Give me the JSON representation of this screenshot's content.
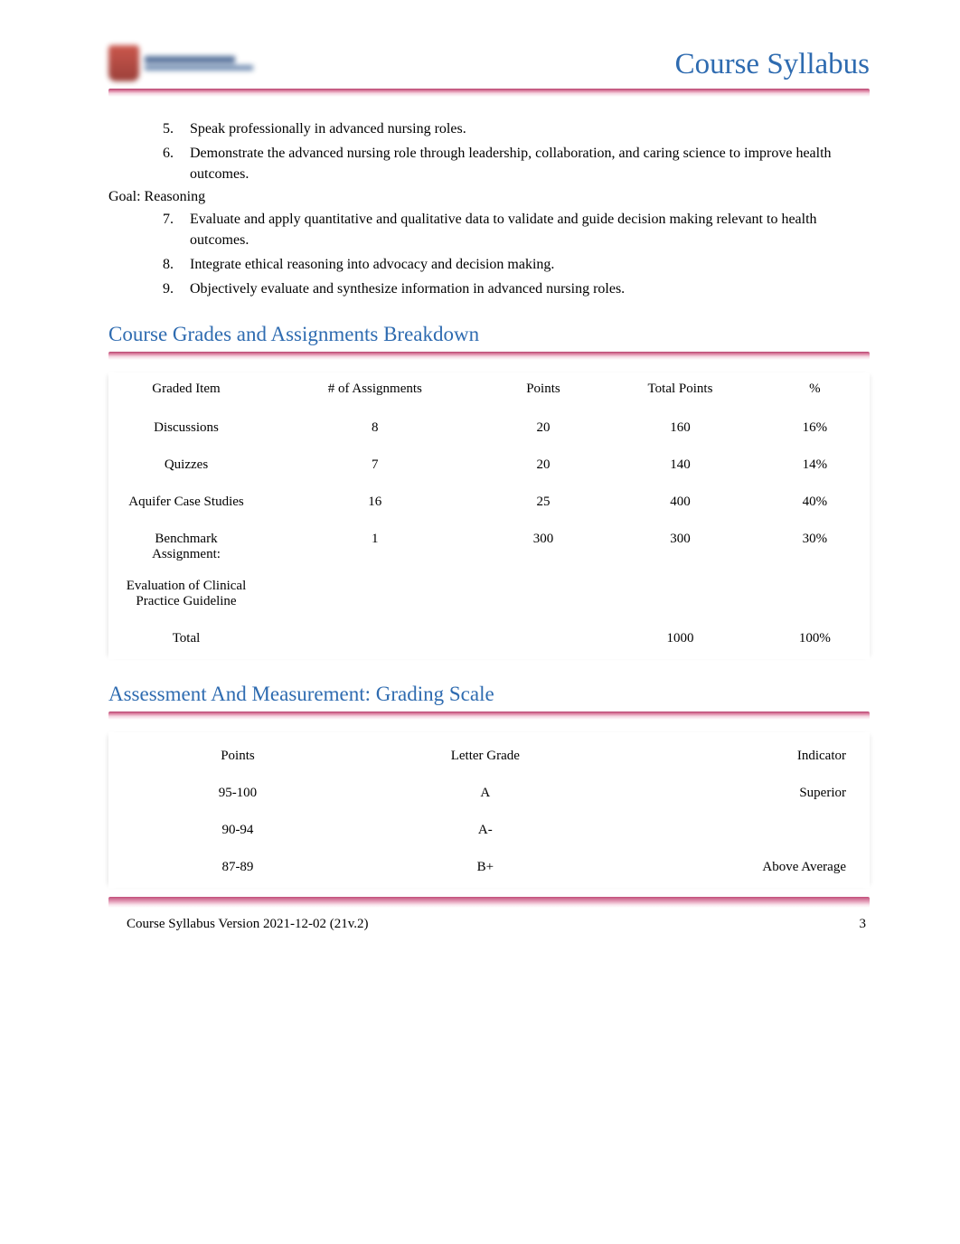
{
  "header": {
    "title": "Course Syllabus"
  },
  "list1": {
    "items": [
      {
        "n": "5.",
        "t": "Speak professionally in advanced nursing roles."
      },
      {
        "n": "6.",
        "t": "Demonstrate the advanced nursing role through leadership, collaboration, and caring science to improve health outcomes."
      }
    ]
  },
  "goal_label": "Goal: Reasoning",
  "list2": {
    "items": [
      {
        "n": "7.",
        "t": "Evaluate and apply quantitative and qualitative data to validate and guide decision making relevant to health outcomes."
      },
      {
        "n": "8.",
        "t": "Integrate ethical reasoning into advocacy and decision making."
      },
      {
        "n": "9.",
        "t": "Objectively evaluate and synthesize information in advanced nursing roles."
      }
    ]
  },
  "grades": {
    "heading": "Course Grades and Assignments Breakdown",
    "cols": [
      "Graded Item",
      "# of Assignments",
      "Points",
      "Total Points",
      "%"
    ],
    "rows": [
      {
        "item": "Discussions",
        "num": "8",
        "pts": "20",
        "total": "160",
        "pct": "16%"
      },
      {
        "item": "Quizzes",
        "num": "7",
        "pts": "20",
        "total": "140",
        "pct": "14%"
      },
      {
        "item": "Aquifer Case Studies",
        "num": "16",
        "pts": "25",
        "total": "400",
        "pct": "40%"
      },
      {
        "item": "Benchmark Assignment:",
        "sub": "Evaluation of Clinical Practice Guideline",
        "num": "1",
        "pts": "300",
        "total": "300",
        "pct": "30%"
      },
      {
        "item": "Total",
        "num": "",
        "pts": "",
        "total": "1000",
        "pct": "100%"
      }
    ]
  },
  "scale": {
    "heading": "Assessment And Measurement: Grading Scale",
    "cols": [
      "Points",
      "Letter Grade",
      "Indicator"
    ],
    "rows": [
      {
        "pts": "95-100",
        "grade": "A",
        "ind": "Superior"
      },
      {
        "pts": "90-94",
        "grade": "A-",
        "ind": ""
      },
      {
        "pts": "87-89",
        "grade": "B+",
        "ind": "Above Average"
      }
    ]
  },
  "footer": {
    "version": "Course Syllabus Version 2021-12-02 (21v.2)",
    "page": "3"
  }
}
